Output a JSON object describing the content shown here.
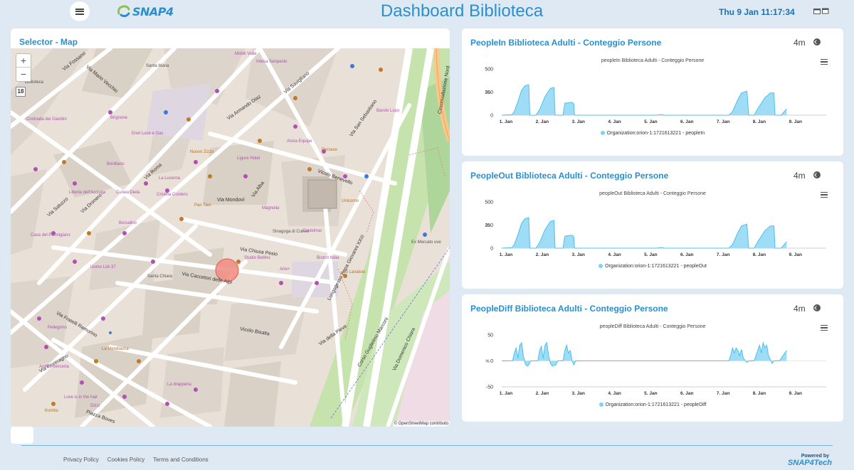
{
  "header": {
    "title": "Dashboard Biblioteca",
    "clock": "Thu 9 Jan 11:17:34",
    "logo_text": "SNAP4"
  },
  "map": {
    "title": "Selector - Map",
    "zoom_in": "+",
    "zoom_out": "−",
    "zoom_level": "18",
    "attribution": "© OpenStreetMap contributo",
    "streets": [
      "Via Fossano",
      "Piazza Santa Maria",
      "Via Armando Diaz",
      "Via Savigliano",
      "Via Roma",
      "Via Saluzzo",
      "Via Dronero",
      "Via Mondovì",
      "Via Alba",
      "Vicolo Benevello",
      "Via Chiusa Pesio",
      "Via Caccetori delle Alpi",
      "Vicolo Bisalta",
      "Via Fratelli Ramorino",
      "Via Peveragno",
      "Lungogesso Papa Giovanni XXIII",
      "Corso Guglielmo Marconi",
      "Via Domenico Chiara",
      "Via della Pieve",
      "Circonvallazione Nord",
      "Via San Sebastiano",
      "Via Mario Vecchio",
      "Piazza Boves"
    ],
    "places": [
      "Santa Maria",
      "Mobili Viale",
      "Intesa Sanpaolo",
      "Biblioteca",
      "Contrada dei Giardini",
      "Enel Luce e Gas",
      "Nuovo Zizzo",
      "Ligure Hotel",
      "La Lucerna",
      "Cristina Cordero",
      "Pan Tien",
      "Magnolia",
      "Sinagoga di Cuneo",
      "Studio Bellino",
      "Arte+",
      "Santa Chiara",
      "Ex Mercato uve",
      "Ex Lavatoio",
      "Casa del Parmigiano",
      "Uomo Lük 37",
      "Bonifacio",
      "Pellegrino",
      "La Mendiacria",
      "La drapperia",
      "Antica merceria",
      "Love is in the hair",
      "Kombu",
      "Dizzi",
      "Castelmar",
      "Bistrot Italia",
      "Unicorno",
      "Borsalino",
      "Cuneo Dieta",
      "Liberia dell'Acciuga",
      "Perseus",
      "Brignone",
      "Barolo Lupo",
      "Alvira Equipe"
    ]
  },
  "charts": [
    {
      "title": "PeopleIn Biblioteca Adulti - Conteggio Persone",
      "time": "4m",
      "chart_data": {
        "type": "area",
        "title": "peopleIn Biblioteca Adulti - Conteggio Persone",
        "ylabel": "%",
        "ylim": [
          0,
          500
        ],
        "yticks": [
          "500",
          "250",
          "0"
        ],
        "xticks": [
          "1. Jan",
          "2. Jan",
          "3. Jan",
          "4. Jan",
          "5. Jan",
          "6. Jan",
          "7. Jan",
          "8. Jan",
          "9. Jan"
        ],
        "series": [
          {
            "name": "Organization:orion-1:1721613221 - peopleIn",
            "x": [
              0,
              1.0,
              1.2,
              1.3,
              1.4,
              1.5,
              1.6,
              1.7,
              1.75,
              1.8,
              1.85,
              1.9,
              2.0,
              2.1,
              2.3,
              2.4,
              2.5,
              2.6,
              2.7,
              2.8,
              2.85,
              2.9,
              3.0,
              3.1,
              3.2,
              3.4,
              3.5,
              3.6,
              3.7,
              3.8,
              3.9,
              3.95,
              4.0,
              4.1,
              4.2,
              4.4,
              4.6,
              4.8,
              5.0,
              5.2,
              5.4,
              5.6,
              5.8,
              6.0,
              6.2,
              6.4,
              6.6,
              6.8,
              7.0,
              7.2,
              7.3,
              7.4,
              7.5,
              7.6,
              7.7,
              7.8,
              7.9,
              7.95,
              8.0,
              8.1,
              8.2,
              8.3,
              8.4,
              8.5,
              8.6,
              8.7,
              8.8,
              8.9,
              8.95,
              9.0,
              9.1,
              9.2,
              9.3,
              9.4,
              9.5,
              9.6,
              9.7,
              9.8,
              9.85,
              9.9,
              10.0
            ],
            "y": [
              0,
              0,
              0,
              0,
              0,
              0,
              0,
              0,
              0,
              0,
              0,
              0,
              0,
              0,
              0,
              0,
              0,
              0,
              0,
              0,
              0,
              0,
              0,
              0,
              0,
              0,
              0,
              0,
              0,
              0,
              0,
              0,
              0,
              0,
              0,
              0,
              0,
              0,
              0,
              0,
              0,
              0,
              0,
              0,
              0,
              0,
              0,
              0,
              0,
              0,
              0,
              0,
              0,
              0,
              0,
              0,
              0,
              0,
              0,
              0,
              0,
              0,
              0,
              0,
              0,
              0,
              0,
              0,
              0,
              0,
              0,
              0,
              0,
              0,
              0,
              0,
              0,
              0,
              0,
              0,
              0
            ],
            "points": [
              [
                1.0,
                0
              ],
              [
                1.28,
                5
              ],
              [
                1.35,
                40
              ],
              [
                1.45,
                150
              ],
              [
                1.55,
                270
              ],
              [
                1.65,
                320
              ],
              [
                1.75,
                330
              ],
              [
                1.78,
                0
              ],
              [
                1.95,
                0
              ],
              [
                2.05,
                60
              ],
              [
                2.2,
                200
              ],
              [
                2.35,
                290
              ],
              [
                2.45,
                300
              ],
              [
                2.48,
                0
              ],
              [
                2.7,
                0
              ],
              [
                2.75,
                130
              ],
              [
                2.95,
                140
              ],
              [
                3.0,
                120
              ],
              [
                3.02,
                0
              ],
              [
                5.3,
                0
              ],
              [
                5.45,
                8
              ],
              [
                5.5,
                0
              ],
              [
                7.3,
                0
              ],
              [
                7.4,
                40
              ],
              [
                7.55,
                170
              ],
              [
                7.65,
                240
              ],
              [
                7.8,
                260
              ],
              [
                7.85,
                0
              ],
              [
                8.0,
                0
              ],
              [
                8.1,
                70
              ],
              [
                8.3,
                190
              ],
              [
                8.45,
                240
              ],
              [
                8.55,
                240
              ],
              [
                8.58,
                0
              ],
              [
                8.75,
                0
              ],
              [
                8.9,
                70
              ]
            ]
          }
        ],
        "legend": "Organization:orion-1:1721613221 - peopleIn"
      }
    },
    {
      "title": "PeopleOut Biblioteca Adulti - Conteggio Persone",
      "time": "4m",
      "chart_data": {
        "type": "area",
        "title": "peopleOut Biblioteca Adulti - Conteggio Persone",
        "ylabel": "%",
        "ylim": [
          0,
          500
        ],
        "yticks": [
          "500",
          "250",
          "0"
        ],
        "xticks": [
          "1. Jan",
          "2. Jan",
          "3. Jan",
          "4. Jan",
          "5. Jan",
          "6. Jan",
          "7. Jan",
          "8. Jan",
          "9. Jan"
        ],
        "series": [
          {
            "name": "Organization:orion-1:1721613221 - peopleOut",
            "points": [
              [
                1.0,
                0
              ],
              [
                1.28,
                5
              ],
              [
                1.35,
                40
              ],
              [
                1.45,
                150
              ],
              [
                1.55,
                270
              ],
              [
                1.65,
                320
              ],
              [
                1.75,
                330
              ],
              [
                1.78,
                0
              ],
              [
                1.95,
                0
              ],
              [
                2.05,
                60
              ],
              [
                2.2,
                200
              ],
              [
                2.35,
                290
              ],
              [
                2.45,
                300
              ],
              [
                2.48,
                0
              ],
              [
                2.7,
                0
              ],
              [
                2.75,
                130
              ],
              [
                2.95,
                140
              ],
              [
                3.0,
                120
              ],
              [
                3.02,
                0
              ],
              [
                5.3,
                0
              ],
              [
                5.45,
                8
              ],
              [
                5.5,
                0
              ],
              [
                7.3,
                0
              ],
              [
                7.4,
                40
              ],
              [
                7.55,
                170
              ],
              [
                7.65,
                240
              ],
              [
                7.8,
                260
              ],
              [
                7.85,
                0
              ],
              [
                8.0,
                0
              ],
              [
                8.1,
                70
              ],
              [
                8.3,
                190
              ],
              [
                8.45,
                240
              ],
              [
                8.55,
                240
              ],
              [
                8.58,
                0
              ],
              [
                8.75,
                0
              ],
              [
                8.9,
                70
              ]
            ]
          }
        ],
        "legend": "Organization:orion-1:1721613221 - peopleOut"
      }
    },
    {
      "title": "PeopleDiff Biblioteca Adulti - Conteggio Persone",
      "time": "4m",
      "chart_data": {
        "type": "area",
        "title": "peopleDiff Biblioteca Adulti - Conteggio Persone",
        "ylabel": "%",
        "ylim": [
          -50,
          50
        ],
        "yticks": [
          "50",
          "0",
          "-50"
        ],
        "xticks": [
          "1. Jan",
          "2. Jan",
          "3. Jan",
          "4. Jan",
          "5. Jan",
          "6. Jan",
          "7. Jan",
          "8. Jan",
          "9. Jan"
        ],
        "series": [
          {
            "name": "Organization:orion-1:1721613221 - peopleDiff",
            "points": [
              [
                1.0,
                0
              ],
              [
                1.3,
                0
              ],
              [
                1.35,
                15
              ],
              [
                1.4,
                25
              ],
              [
                1.45,
                5
              ],
              [
                1.5,
                30
              ],
              [
                1.55,
                35
              ],
              [
                1.6,
                10
              ],
              [
                1.65,
                -5
              ],
              [
                1.7,
                -10
              ],
              [
                1.75,
                -8
              ],
              [
                1.8,
                0
              ],
              [
                2.0,
                0
              ],
              [
                2.05,
                20
              ],
              [
                2.1,
                28
              ],
              [
                2.15,
                5
              ],
              [
                2.2,
                30
              ],
              [
                2.25,
                35
              ],
              [
                2.3,
                10
              ],
              [
                2.35,
                -5
              ],
              [
                2.4,
                -10
              ],
              [
                2.5,
                -8
              ],
              [
                2.55,
                0
              ],
              [
                2.7,
                0
              ],
              [
                2.75,
                20
              ],
              [
                2.8,
                30
              ],
              [
                2.85,
                15
              ],
              [
                2.9,
                20
              ],
              [
                2.95,
                0
              ],
              [
                3.0,
                -8
              ],
              [
                3.05,
                0
              ],
              [
                7.3,
                0
              ],
              [
                7.35,
                10
              ],
              [
                7.4,
                25
              ],
              [
                7.45,
                15
              ],
              [
                7.5,
                25
              ],
              [
                7.55,
                20
              ],
              [
                7.6,
                10
              ],
              [
                7.65,
                22
              ],
              [
                7.7,
                5
              ],
              [
                7.8,
                -3
              ],
              [
                7.85,
                0
              ],
              [
                8.0,
                0
              ],
              [
                8.05,
                10
              ],
              [
                8.1,
                20
              ],
              [
                8.15,
                30
              ],
              [
                8.2,
                15
              ],
              [
                8.25,
                35
              ],
              [
                8.3,
                25
              ],
              [
                8.35,
                30
              ],
              [
                8.4,
                10
              ],
              [
                8.5,
                -5
              ],
              [
                8.55,
                0
              ],
              [
                8.7,
                0
              ],
              [
                8.8,
                10
              ],
              [
                8.9,
                20
              ]
            ]
          }
        ],
        "legend": "Organization:orion-1:1721613221 - peopleDiff"
      }
    }
  ],
  "footer": {
    "links": [
      "Privacy Policy",
      "Cookies Policy",
      "Terms and Conditions"
    ],
    "powered_by": "Powered by",
    "brand": "SNAP4Tech"
  }
}
